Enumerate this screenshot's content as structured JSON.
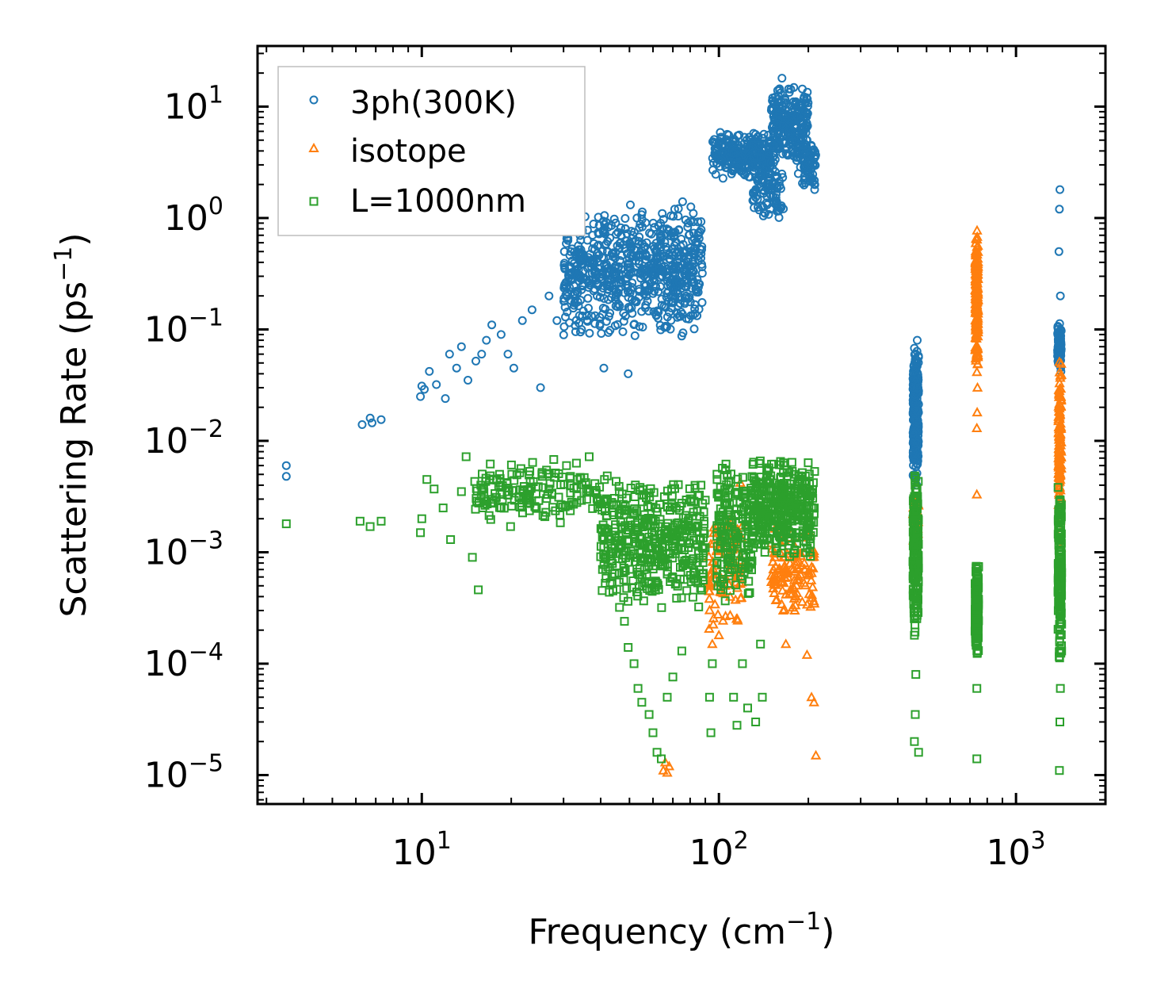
{
  "chart_data": {
    "type": "scatter",
    "title": "",
    "xlabel": "Frequency (cm",
    "xlabel_sup": "−1",
    "xlabel_close": ")",
    "ylabel": "Scattering Rate (ps",
    "ylabel_sup": "−1",
    "ylabel_close": ")",
    "xscale": "log",
    "yscale": "log",
    "xlim": [
      2.8,
      2000
    ],
    "ylim": [
      5.5e-06,
      35
    ],
    "legend_position": "top-left",
    "x_ticks": [
      {
        "value": 10,
        "base": "10",
        "exp": "1"
      },
      {
        "value": 100,
        "base": "10",
        "exp": "2"
      },
      {
        "value": 1000,
        "base": "10",
        "exp": "3"
      }
    ],
    "y_ticks": [
      {
        "value": 10,
        "base": "10",
        "exp": "1"
      },
      {
        "value": 1,
        "base": "10",
        "exp": "0"
      },
      {
        "value": 0.1,
        "base": "10",
        "exp": "−1"
      },
      {
        "value": 0.01,
        "base": "10",
        "exp": "−2"
      },
      {
        "value": 0.001,
        "base": "10",
        "exp": "−3"
      },
      {
        "value": 0.0001,
        "base": "10",
        "exp": "−4"
      },
      {
        "value": 1e-05,
        "base": "10",
        "exp": "−5"
      }
    ],
    "series": [
      {
        "name": "3ph(300K)",
        "color": "#1f77b4",
        "marker": "circle",
        "points": [
          [
            3.5,
            0.006
          ],
          [
            3.5,
            0.0048
          ],
          [
            6.3,
            0.014
          ],
          [
            6.7,
            0.016
          ],
          [
            6.8,
            0.0145
          ],
          [
            7.3,
            0.0155
          ],
          [
            9.9,
            0.025
          ],
          [
            10.0,
            0.031
          ],
          [
            10.2,
            0.029
          ],
          [
            10.6,
            0.042
          ],
          [
            11.2,
            0.032
          ],
          [
            12.0,
            0.024
          ],
          [
            12.4,
            0.06
          ],
          [
            13.1,
            0.045
          ],
          [
            13.6,
            0.07
          ],
          [
            14.3,
            0.035
          ],
          [
            15.2,
            0.052
          ],
          [
            15.9,
            0.06
          ],
          [
            16.5,
            0.08
          ],
          [
            17.2,
            0.11
          ],
          [
            18.5,
            0.09
          ],
          [
            19.5,
            0.06
          ],
          [
            20.4,
            0.045
          ],
          [
            21.8,
            0.12
          ],
          [
            23.5,
            0.15
          ],
          [
            25.1,
            0.03
          ],
          [
            26.8,
            0.2
          ],
          [
            28.5,
            0.12
          ],
          [
            30.2,
            0.5
          ],
          [
            31.7,
            0.5
          ],
          [
            33.4,
            0.3
          ],
          [
            34.5,
            0.1
          ],
          [
            36.8,
            0.25
          ],
          [
            38.9,
            0.2
          ],
          [
            41.0,
            0.045
          ],
          [
            43.2,
            0.4
          ],
          [
            45.0,
            0.3
          ],
          [
            46.7,
            0.6
          ],
          [
            48.5,
            0.8
          ],
          [
            49.5,
            0.04
          ],
          [
            51.3,
            0.7
          ],
          [
            53.0,
            1.0
          ],
          [
            55.2,
            0.35
          ],
          [
            57.1,
            0.6
          ],
          [
            60.1,
            0.9
          ],
          [
            62.0,
            0.5
          ],
          [
            64.5,
            0.3
          ],
          [
            66.8,
            0.8
          ],
          [
            68.9,
            0.2
          ],
          [
            71.0,
            1.2
          ],
          [
            73.4,
            0.5
          ],
          [
            75.5,
            1.4
          ],
          [
            78.8,
            0.9
          ],
          [
            82.0,
            1.1
          ],
          [
            85.3,
            0.7
          ],
          [
            97.0,
            4.2
          ],
          [
            100.0,
            3.3
          ],
          [
            105.0,
            3.0
          ],
          [
            112.0,
            3.8
          ],
          [
            120.0,
            2.8
          ],
          [
            125.0,
            4.6
          ],
          [
            130.0,
            4.3
          ],
          [
            138.0,
            3.5
          ],
          [
            143.0,
            1.1
          ],
          [
            148.0,
            2.3
          ],
          [
            152.0,
            4.5
          ],
          [
            157.0,
            7.0
          ],
          [
            160.0,
            14.0
          ],
          [
            163.0,
            18.0
          ],
          [
            168.0,
            8.5
          ],
          [
            172.0,
            6.0
          ],
          [
            176.0,
            9.0
          ],
          [
            182.0,
            3.5
          ],
          [
            185.0,
            2.5
          ],
          [
            192.0,
            4.5
          ],
          [
            198.0,
            5.0
          ],
          [
            205.0,
            2.8
          ],
          [
            210.0,
            1.8
          ],
          [
            457.0,
            0.02
          ],
          [
            460.0,
            0.05
          ],
          [
            463.0,
            0.004
          ],
          [
            465.0,
            0.08
          ],
          [
            468.0,
            0.03
          ],
          [
            1390.0,
            0.09
          ],
          [
            1395.0,
            0.5
          ],
          [
            1400.0,
            1.2
          ],
          [
            1405.0,
            1.8
          ],
          [
            1410.0,
            0.2
          ]
        ],
        "clusters": [
          {
            "x": [
              30,
              88
            ],
            "y": [
              0.08,
              1.4
            ],
            "n": 700
          },
          {
            "x": [
              95,
              150
            ],
            "y": [
              2.2,
              6.0
            ],
            "n": 260
          },
          {
            "x": [
              130,
              165
            ],
            "y": [
              0.9,
              3.5
            ],
            "n": 90
          },
          {
            "x": [
              150,
              200
            ],
            "y": [
              3.0,
              16.0
            ],
            "n": 260
          },
          {
            "x": [
              188,
              212
            ],
            "y": [
              1.8,
              5.0
            ],
            "n": 60
          },
          {
            "x": [
              450,
              470
            ],
            "y": [
              0.0035,
              0.085
            ],
            "n": 240
          },
          {
            "x": [
              1380,
              1420
            ],
            "y": [
              0.04,
              0.12
            ],
            "n": 90
          }
        ]
      },
      {
        "name": "isotope",
        "color": "#ff7f0e",
        "marker": "triangle",
        "points": [
          [
            65.0,
            1.1e-05
          ],
          [
            66.0,
            1.3e-05
          ],
          [
            67.0,
            1.05e-05
          ],
          [
            68.0,
            1.2e-05
          ],
          [
            95.0,
            0.00015
          ],
          [
            100.0,
            0.00018
          ],
          [
            105.0,
            0.0005
          ],
          [
            112.0,
            0.0015
          ],
          [
            118.0,
            0.0042
          ],
          [
            168.0,
            0.00015
          ],
          [
            180.0,
            0.0003
          ],
          [
            198.0,
            0.00012
          ],
          [
            205.0,
            5e-05
          ],
          [
            212.0,
            1.5e-05
          ],
          [
            209.0,
            4.5e-05
          ],
          [
            738.0,
            0.0033
          ],
          [
            738.0,
            0.013
          ],
          [
            740.0,
            0.018
          ],
          [
            742.0,
            0.03
          ],
          [
            1410.0,
            0.0015
          ],
          [
            1415.0,
            0.0011
          ]
        ],
        "clusters": [
          {
            "x": [
              92,
              120
            ],
            "y": [
              0.00015,
              0.003
            ],
            "n": 90
          },
          {
            "x": [
              150,
              210
            ],
            "y": [
              0.00025,
              0.0018
            ],
            "n": 120
          },
          {
            "x": [
              450,
              470
            ],
            "y": [
              0.0011,
              0.003
            ],
            "n": 40
          },
          {
            "x": [
              730,
              745
            ],
            "y": [
              0.04,
              0.85
            ],
            "n": 200
          },
          {
            "x": [
              1390,
              1420
            ],
            "y": [
              0.0016,
              0.07
            ],
            "n": 120
          }
        ]
      },
      {
        "name": "L=1000nm",
        "color": "#2ca02c",
        "marker": "square",
        "points": [
          [
            3.5,
            0.0018
          ],
          [
            6.2,
            0.0019
          ],
          [
            6.7,
            0.0017
          ],
          [
            7.3,
            0.0019
          ],
          [
            9.9,
            0.0015
          ],
          [
            10.0,
            0.002
          ],
          [
            10.4,
            0.0045
          ],
          [
            11.0,
            0.0037
          ],
          [
            11.8,
            0.0025
          ],
          [
            12.5,
            0.0013
          ],
          [
            13.6,
            0.0035
          ],
          [
            14.1,
            0.0072
          ],
          [
            14.8,
            0.0009
          ],
          [
            15.5,
            0.00046
          ],
          [
            16.1,
            0.0038
          ],
          [
            17.0,
            0.0062
          ],
          [
            18.5,
            0.0025
          ],
          [
            19.9,
            0.0017
          ],
          [
            21.3,
            0.0031
          ],
          [
            23.6,
            0.0064
          ],
          [
            25.4,
            0.0052
          ],
          [
            27.8,
            0.0068
          ],
          [
            30.7,
            0.006
          ],
          [
            34.1,
            0.0047
          ],
          [
            36.6,
            0.0072
          ],
          [
            41.2,
            0.0045
          ],
          [
            44.0,
            0.00045
          ],
          [
            46.3,
            0.00032
          ],
          [
            48.1,
            0.00024
          ],
          [
            49.5,
            0.00014
          ],
          [
            51.8,
            0.0001
          ],
          [
            53.4,
            6e-05
          ],
          [
            55.0,
            4.5e-05
          ],
          [
            58.2,
            3.5e-05
          ],
          [
            60.0,
            2.4e-05
          ],
          [
            61.9,
            1.6e-05
          ],
          [
            64.0,
            1.4e-05
          ],
          [
            67.0,
            5e-05
          ],
          [
            70.0,
            7.6e-05
          ],
          [
            75.0,
            0.00013
          ],
          [
            93.0,
            5e-05
          ],
          [
            94.0,
            2.4e-05
          ],
          [
            95.0,
            0.0001
          ],
          [
            112.0,
            5e-05
          ],
          [
            115.0,
            2.8e-05
          ],
          [
            120.0,
            0.0001
          ],
          [
            125.0,
            4e-05
          ],
          [
            133.0,
            3e-05
          ],
          [
            138.0,
            0.00015
          ],
          [
            140.0,
            5e-05
          ],
          [
            455.0,
            2e-05
          ],
          [
            458.0,
            3.5e-05
          ],
          [
            460.0,
            8e-05
          ],
          [
            470.0,
            1.6e-05
          ],
          [
            738.0,
            1.4e-05
          ],
          [
            738.0,
            6e-05
          ],
          [
            740.0,
            0.0002
          ],
          [
            1400.0,
            1.1e-05
          ],
          [
            1405.0,
            3e-05
          ],
          [
            1410.0,
            6e-05
          ]
        ],
        "clusters": [
          {
            "x": [
              15,
              40
            ],
            "y": [
              0.0018,
              0.0065
            ],
            "n": 160
          },
          {
            "x": [
              40,
              90
            ],
            "y": [
              0.0003,
              0.005
            ],
            "n": 420
          },
          {
            "x": [
              98,
              130
            ],
            "y": [
              0.0003,
              0.007
            ],
            "n": 180
          },
          {
            "x": [
              130,
              210
            ],
            "y": [
              0.0008,
              0.0078
            ],
            "n": 360
          },
          {
            "x": [
              450,
              470
            ],
            "y": [
              0.00015,
              0.006
            ],
            "n": 180
          },
          {
            "x": [
              728,
              748
            ],
            "y": [
              0.0001,
              0.0009
            ],
            "n": 160
          },
          {
            "x": [
              1385,
              1425
            ],
            "y": [
              0.0001,
              0.005
            ],
            "n": 160
          }
        ]
      }
    ]
  }
}
